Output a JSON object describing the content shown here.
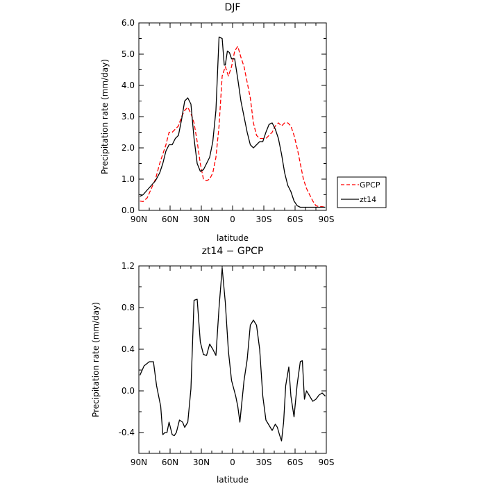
{
  "chart_data": [
    {
      "type": "line",
      "title": "DJF",
      "xlabel": "latitude",
      "ylabel": "Precipitation rate (mm/day)",
      "xlim": [
        -90,
        90
      ],
      "ylim": [
        0,
        6
      ],
      "x_ticks": [
        {
          "value": -90,
          "label": "90N"
        },
        {
          "value": -60,
          "label": "60N"
        },
        {
          "value": -30,
          "label": "30N"
        },
        {
          "value": 0,
          "label": "0"
        },
        {
          "value": 30,
          "label": "30S"
        },
        {
          "value": 60,
          "label": "60S"
        },
        {
          "value": 90,
          "label": "90S"
        }
      ],
      "y_ticks": [
        {
          "value": 0,
          "label": "0.0"
        },
        {
          "value": 1,
          "label": "1.0"
        },
        {
          "value": 2,
          "label": "2.0"
        },
        {
          "value": 3,
          "label": "3.0"
        },
        {
          "value": 4,
          "label": "4.0"
        },
        {
          "value": 5,
          "label": "5.0"
        },
        {
          "value": 6,
          "label": "6.0"
        }
      ],
      "legend_position": "outside right",
      "series": [
        {
          "name": "GPCP",
          "color": "#ff0000",
          "dash": "dashed",
          "x": [
            -89,
            -86,
            -82,
            -78,
            -74,
            -70,
            -67,
            -64,
            -61,
            -58,
            -55,
            -52,
            -49,
            -46,
            -43,
            -40,
            -37,
            -34,
            -31,
            -28,
            -25,
            -22,
            -19,
            -16,
            -13,
            -10,
            -7,
            -4,
            -1,
            2,
            5,
            8,
            11,
            14,
            17,
            20,
            23,
            26,
            29,
            32,
            35,
            38,
            41,
            44,
            47,
            50,
            53,
            56,
            59,
            62,
            65,
            68,
            71,
            74,
            77,
            80,
            83,
            86,
            89
          ],
          "y": [
            0.3,
            0.28,
            0.4,
            0.7,
            1.0,
            1.5,
            1.8,
            2.1,
            2.5,
            2.5,
            2.6,
            2.7,
            3.0,
            3.2,
            3.3,
            3.1,
            2.8,
            2.2,
            1.5,
            1.0,
            0.95,
            1.0,
            1.2,
            1.7,
            2.7,
            4.3,
            4.6,
            4.3,
            4.6,
            5.1,
            5.25,
            4.9,
            4.6,
            4.1,
            3.6,
            2.8,
            2.4,
            2.3,
            2.3,
            2.3,
            2.4,
            2.5,
            2.7,
            2.8,
            2.7,
            2.8,
            2.8,
            2.7,
            2.4,
            2.0,
            1.5,
            1.0,
            0.7,
            0.5,
            0.3,
            0.15,
            0.12,
            0.12,
            0.1
          ]
        },
        {
          "name": "zt14",
          "color": "#000000",
          "dash": "solid",
          "x": [
            -89,
            -86,
            -82,
            -78,
            -74,
            -70,
            -67,
            -64,
            -61,
            -58,
            -55,
            -52,
            -49,
            -46,
            -43,
            -40,
            -37,
            -34,
            -31,
            -28,
            -25,
            -22,
            -19,
            -16,
            -13,
            -10,
            -8,
            -7,
            -5,
            -3,
            -1,
            2,
            5,
            8,
            11,
            14,
            17,
            20,
            23,
            26,
            29,
            32,
            35,
            38,
            41,
            44,
            47,
            50,
            53,
            56,
            59,
            62,
            65,
            68,
            71,
            74,
            77,
            80,
            83,
            86,
            89
          ],
          "y": [
            0.45,
            0.5,
            0.65,
            0.8,
            0.95,
            1.2,
            1.5,
            1.9,
            2.1,
            2.1,
            2.3,
            2.4,
            2.9,
            3.5,
            3.6,
            3.4,
            2.3,
            1.5,
            1.25,
            1.3,
            1.5,
            1.7,
            2.2,
            3.2,
            5.55,
            5.5,
            4.65,
            4.65,
            5.1,
            5.05,
            4.85,
            4.85,
            4.2,
            3.5,
            3.0,
            2.5,
            2.1,
            2.0,
            2.1,
            2.2,
            2.2,
            2.5,
            2.75,
            2.8,
            2.6,
            2.3,
            1.8,
            1.2,
            0.8,
            0.6,
            0.3,
            0.15,
            0.1,
            0.1,
            0.1,
            0.1,
            0.1,
            0.1,
            0.1,
            0.1,
            0.1
          ]
        }
      ]
    },
    {
      "type": "line",
      "title": "zt14 − GPCP",
      "xlabel": "latitude",
      "ylabel": "Precipitation rate (mm/day)",
      "xlim": [
        -90,
        90
      ],
      "ylim": [
        -0.6,
        1.2
      ],
      "x_ticks": [
        {
          "value": -90,
          "label": "90N"
        },
        {
          "value": -60,
          "label": "60N"
        },
        {
          "value": -30,
          "label": "30N"
        },
        {
          "value": 0,
          "label": "0"
        },
        {
          "value": 30,
          "label": "30S"
        },
        {
          "value": 60,
          "label": "60S"
        },
        {
          "value": 90,
          "label": "90S"
        }
      ],
      "y_ticks": [
        {
          "value": -0.4,
          "label": "-0.4"
        },
        {
          "value": 0.0,
          "label": "0.0"
        },
        {
          "value": 0.4,
          "label": "0.4"
        },
        {
          "value": 0.8,
          "label": "0.8"
        },
        {
          "value": 1.2,
          "label": "1.2"
        }
      ],
      "series": [
        {
          "color": "#000000",
          "dash": "solid",
          "x": [
            -89,
            -85,
            -80,
            -76,
            -73,
            -69,
            -67,
            -65,
            -63,
            -61,
            -58,
            -56,
            -54,
            -51,
            -48,
            -46,
            -43,
            -40,
            -37,
            -34,
            -31,
            -28,
            -25,
            -22,
            -19,
            -16,
            -13,
            -10,
            -7,
            -4,
            -1,
            3,
            5,
            7,
            11,
            14,
            17,
            20,
            23,
            26,
            29,
            32,
            35,
            38,
            41,
            43,
            45,
            47,
            49,
            51,
            54,
            56,
            59,
            62,
            65,
            67,
            69,
            71,
            74,
            77,
            80,
            83,
            86,
            89
          ],
          "y": [
            0.15,
            0.24,
            0.28,
            0.28,
            0.05,
            -0.15,
            -0.42,
            -0.4,
            -0.4,
            -0.3,
            -0.42,
            -0.43,
            -0.4,
            -0.28,
            -0.3,
            -0.35,
            -0.3,
            0.02,
            0.87,
            0.88,
            0.47,
            0.35,
            0.34,
            0.45,
            0.4,
            0.34,
            0.8,
            1.18,
            0.85,
            0.38,
            0.1,
            -0.05,
            -0.15,
            -0.3,
            0.1,
            0.3,
            0.63,
            0.68,
            0.63,
            0.4,
            -0.05,
            -0.28,
            -0.33,
            -0.38,
            -0.32,
            -0.35,
            -0.42,
            -0.48,
            -0.3,
            0.05,
            0.23,
            -0.05,
            -0.25,
            0.06,
            0.28,
            0.29,
            -0.08,
            0.0,
            -0.05,
            -0.1,
            -0.08,
            -0.04,
            -0.02,
            -0.05
          ]
        }
      ]
    }
  ]
}
